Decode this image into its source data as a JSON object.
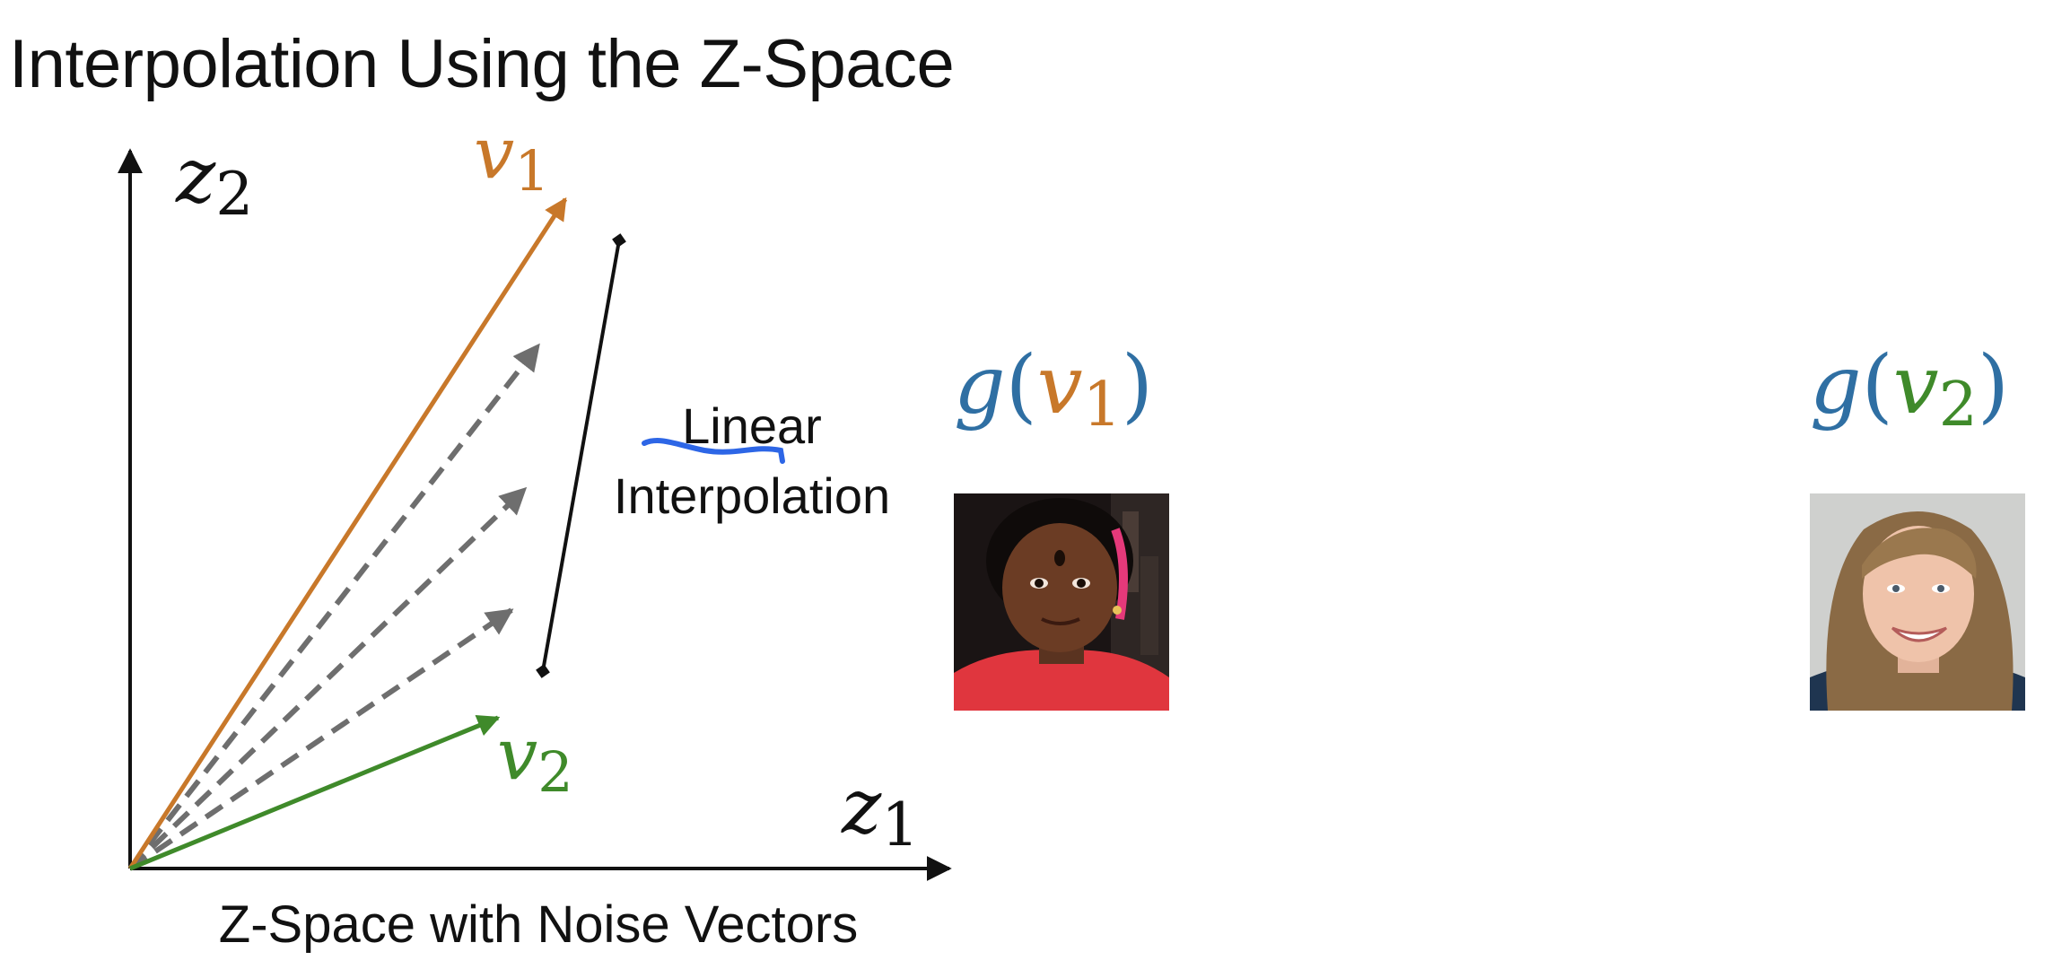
{
  "slide": {
    "title": "Interpolation Using the Z-Space"
  },
  "diagram": {
    "axis_x_label": "z1",
    "axis_y_label": "z2",
    "vector_1_label": "v1",
    "vector_2_label": "v2",
    "interpolation_label_line1": "Linear",
    "interpolation_label_line2": "Interpolation",
    "caption": "Z-Space with Noise Vectors",
    "intermediate_vector_count": 3
  },
  "outputs": {
    "output_1_label": "g(v1)",
    "output_2_label": "g(v2)"
  },
  "colors": {
    "vector_1": "#c8782a",
    "vector_2": "#3f8a2a",
    "function_g": "#2f6fa3",
    "intermediate": "#6e6e6e",
    "axes": "#111111",
    "annotation": "#2d66e6"
  },
  "images": {
    "face_1": "young-girl-face",
    "face_2": "smiling-woman-face"
  }
}
